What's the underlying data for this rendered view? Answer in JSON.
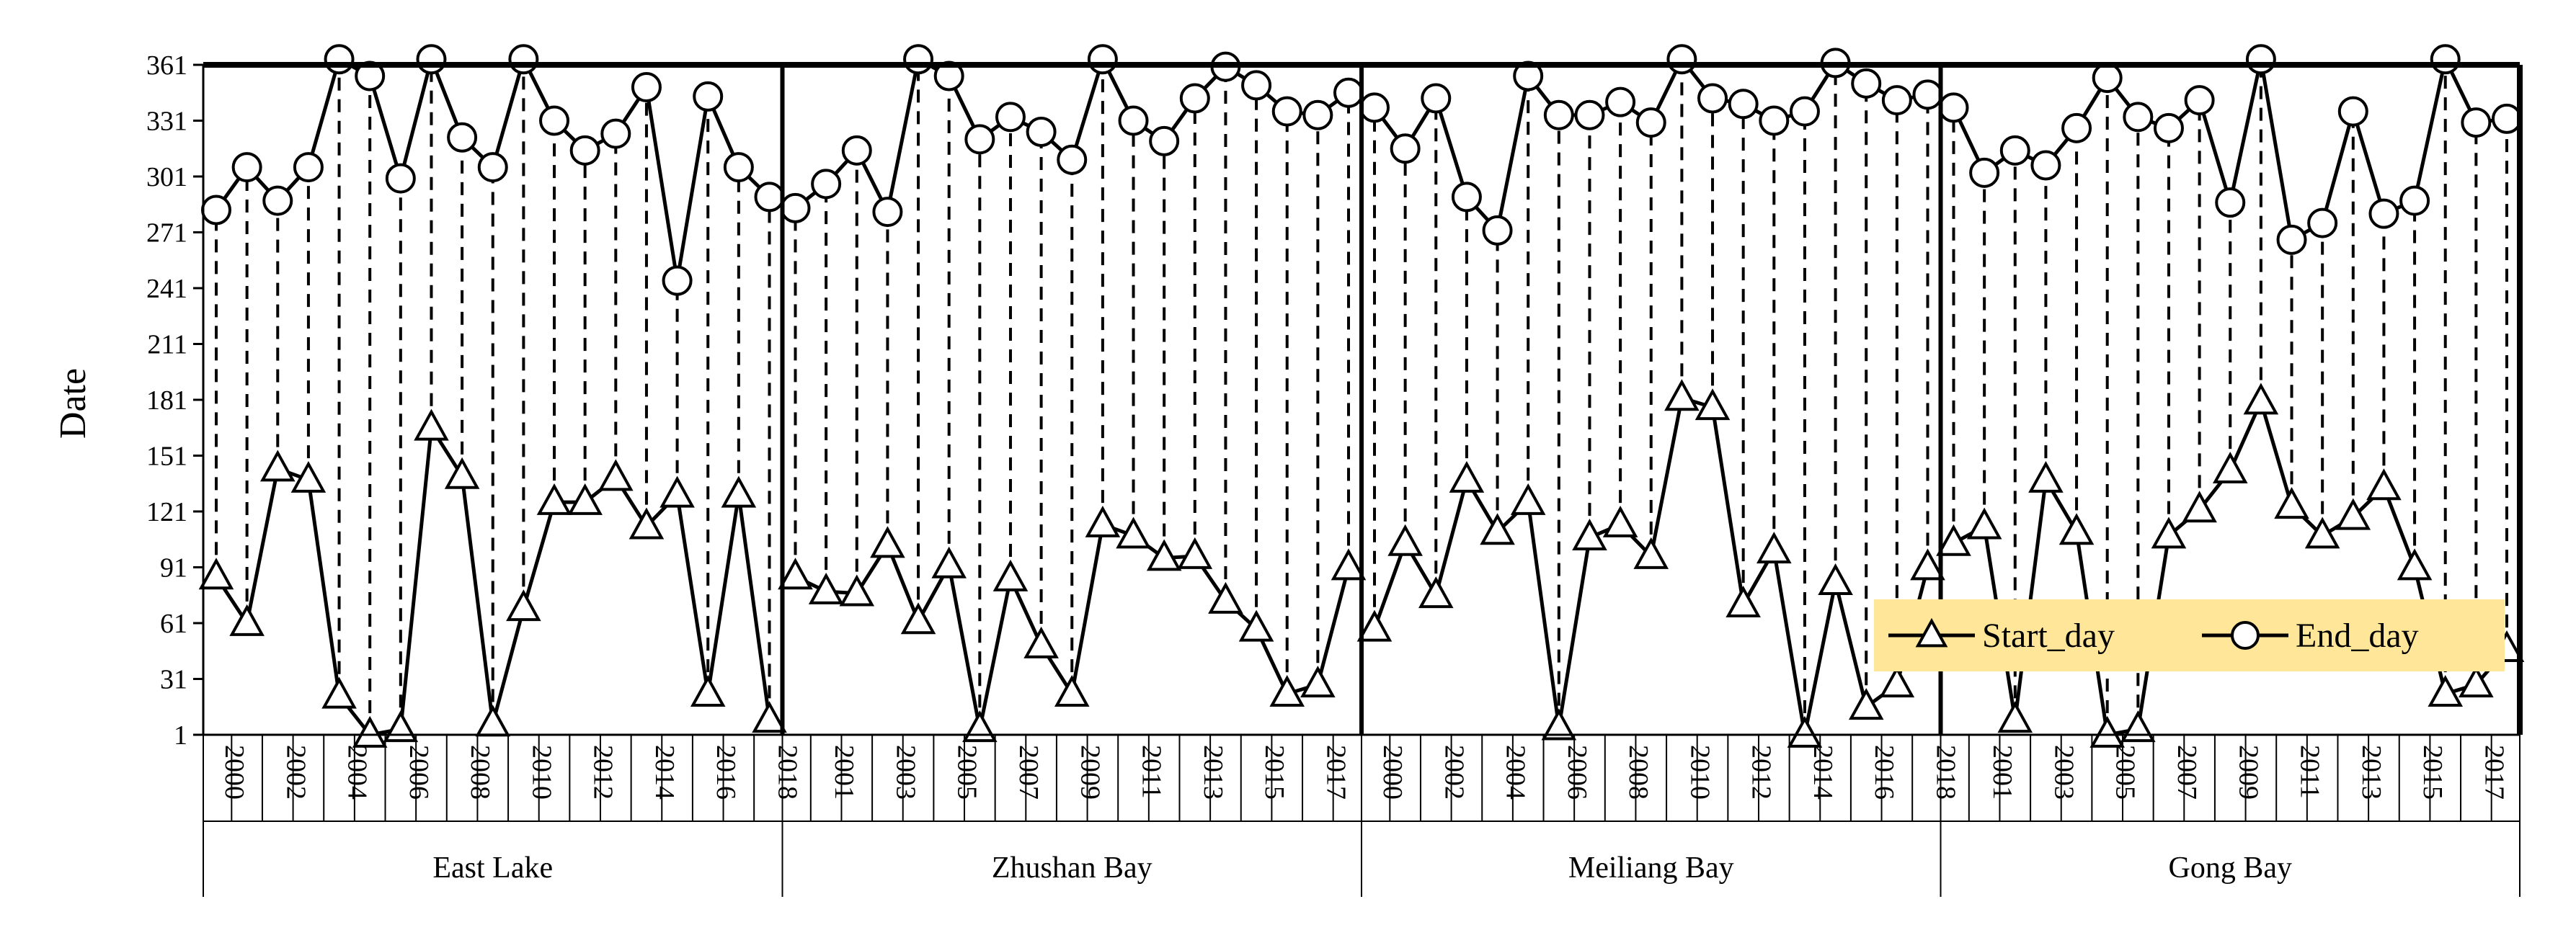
{
  "chart_data": {
    "type": "line",
    "ylabel": "Date",
    "ylim": [
      1,
      361
    ],
    "yticks": [
      1,
      31,
      61,
      91,
      121,
      151,
      181,
      211,
      241,
      271,
      301,
      331,
      361
    ],
    "legend": {
      "placement": "inside-right",
      "background": "#FFE699",
      "entries": [
        "Start_day",
        "End_day"
      ]
    },
    "colors": {
      "line": "#000000",
      "legend_bg": "#FFE699"
    },
    "groups": [
      {
        "name": "East Lake",
        "years": [
          2000,
          2001,
          2002,
          2003,
          2004,
          2005,
          2006,
          2007,
          2008,
          2009,
          2010,
          2011,
          2012,
          2013,
          2014,
          2015,
          2016,
          2017,
          2018
        ],
        "year_labels": [
          "2000",
          "2002",
          "2004",
          "2006",
          "2008",
          "2010",
          "2012",
          "2014",
          "2016",
          "2018"
        ],
        "start_day": [
          86,
          61,
          144,
          138,
          22,
          1,
          4,
          166,
          140,
          7,
          69,
          126,
          126,
          139,
          113,
          130,
          23,
          130,
          9
        ],
        "end_day": [
          283,
          306,
          288,
          306,
          364,
          355,
          300,
          364,
          322,
          306,
          364,
          331,
          315,
          324,
          349,
          245,
          344,
          306,
          290
        ]
      },
      {
        "name": "Zhushan Bay",
        "years": [
          2000,
          2001,
          2002,
          2003,
          2004,
          2005,
          2006,
          2007,
          2008,
          2009,
          2010,
          2011,
          2012,
          2013,
          2014,
          2015,
          2016,
          2017,
          2018
        ],
        "year_labels": [
          "2001",
          "2003",
          "2005",
          "2007",
          "2009",
          "2011",
          "2013",
          "2015",
          "2017"
        ],
        "start_day": [
          86,
          78,
          77,
          103,
          62,
          92,
          4,
          85,
          49,
          23,
          114,
          108,
          96,
          97,
          73,
          58,
          23,
          28,
          91
        ],
        "end_day": [
          284,
          297,
          315,
          282,
          364,
          355,
          321,
          333,
          325,
          310,
          364,
          331,
          320,
          343,
          360,
          350,
          336,
          334,
          346
        ]
      },
      {
        "name": "Meiliang Bay",
        "years": [
          2000,
          2001,
          2002,
          2003,
          2004,
          2005,
          2006,
          2007,
          2008,
          2009,
          2010,
          2011,
          2012,
          2013,
          2014,
          2015,
          2016,
          2017,
          2018
        ],
        "year_labels": [
          "2000",
          "2002",
          "2004",
          "2006",
          "2008",
          "2010",
          "2012",
          "2014",
          "2016",
          "2018"
        ],
        "start_day": [
          58,
          104,
          76,
          138,
          110,
          126,
          5,
          107,
          114,
          97,
          182,
          177,
          71,
          100,
          1,
          83,
          16,
          28,
          91
        ],
        "end_day": [
          338,
          316,
          343,
          290,
          272,
          355,
          334,
          334,
          341,
          330,
          364,
          343,
          340,
          331,
          336,
          362,
          351,
          342,
          345
        ]
      },
      {
        "name": "Gong Bay",
        "years": [
          2000,
          2001,
          2002,
          2003,
          2004,
          2005,
          2006,
          2007,
          2008,
          2009,
          2010,
          2011,
          2012,
          2013,
          2014,
          2015,
          2016,
          2017,
          2018
        ],
        "year_labels": [
          "2001",
          "2003",
          "2005",
          "2007",
          "2009",
          "2011",
          "2013",
          "2015",
          "2017"
        ],
        "start_day": [
          104,
          113,
          9,
          138,
          110,
          1,
          4,
          108,
          122,
          143,
          180,
          124,
          108,
          118,
          134,
          91,
          23,
          28,
          47
        ],
        "end_day": [
          338,
          303,
          315,
          307,
          327,
          354,
          333,
          327,
          342,
          287,
          364,
          267,
          276,
          336,
          281,
          288,
          364,
          330,
          332
        ]
      }
    ]
  }
}
